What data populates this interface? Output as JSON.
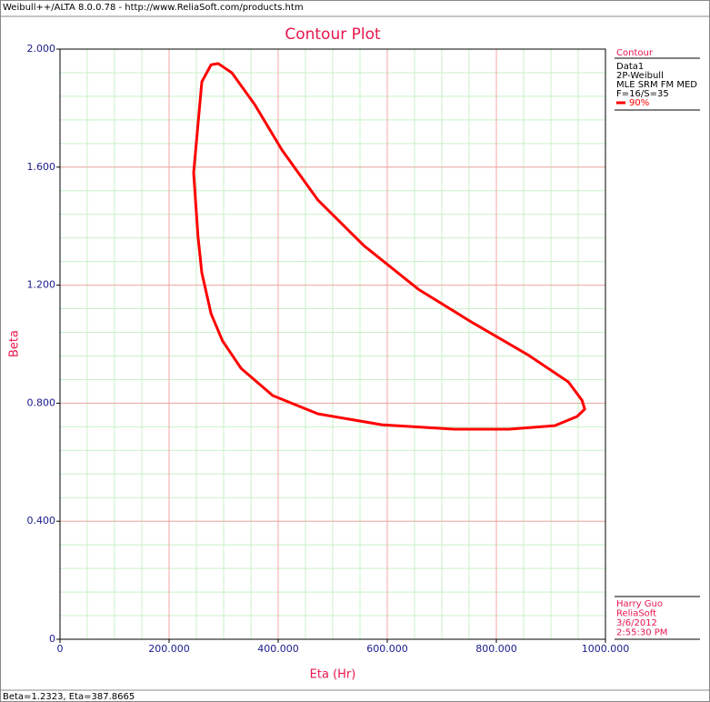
{
  "window_title": "Weibull++/ALTA 8.0.0.78 - http://www.ReliaSoft.com/products.htm",
  "status": "Beta=1.2323, Eta=387.8665",
  "chart_data": {
    "type": "line",
    "title": "Contour Plot",
    "x_label": "Eta (Hr)",
    "y_label": "Beta",
    "xlim": [
      0,
      1000
    ],
    "ylim": [
      0,
      2
    ],
    "xticks": [
      0,
      {
        "value": 200,
        "label": "200.000"
      },
      {
        "value": 400,
        "label": "400.000"
      },
      {
        "value": 600,
        "label": "600.000"
      },
      {
        "value": 800,
        "label": "800.000"
      },
      {
        "value": 1000,
        "label": "1000.000"
      }
    ],
    "yticks": [
      0,
      {
        "value": 0.4,
        "label": "0.400"
      },
      {
        "value": 0.8,
        "label": "0.800"
      },
      {
        "value": 1.2,
        "label": "1.200"
      },
      {
        "value": 1.6,
        "label": "1.600"
      },
      {
        "value": 2,
        "label": "2.000"
      }
    ],
    "grid": true,
    "minor_grid": {
      "x": 50,
      "y": 0.08
    },
    "closed": true,
    "legend": {
      "title": "Contour",
      "lines": [
        "Data1",
        "2P-Weibull",
        "MLE SRM FM MED",
        "F=16/S=35"
      ]
    },
    "info": [
      "Harry Guo",
      "ReliaSoft",
      "3/6/2012",
      "2:55:30 PM"
    ],
    "series": [
      {
        "name": "90%",
        "color": "#ff0000",
        "x": [
          277,
          290,
          315,
          357,
          407,
          473,
          557,
          657,
          757,
          857,
          932,
          957,
          962,
          948,
          907,
          823,
          723,
          590,
          473,
          390,
          332,
          298,
          277,
          260,
          253,
          245,
          260
        ],
        "values": [
          1.947,
          1.951,
          1.92,
          1.812,
          1.658,
          1.488,
          1.334,
          1.186,
          1.072,
          0.965,
          0.872,
          0.81,
          0.78,
          0.755,
          0.724,
          0.712,
          0.712,
          0.727,
          0.764,
          0.826,
          0.918,
          1.011,
          1.103,
          1.242,
          1.365,
          1.581,
          1.889
        ]
      }
    ]
  }
}
